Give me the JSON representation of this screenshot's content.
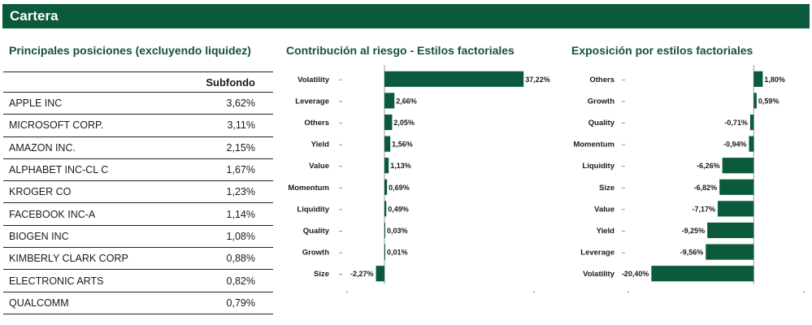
{
  "header": {
    "title": "Cartera"
  },
  "positions": {
    "title": "Principales posiciones (excluyendo liquidez)",
    "column": "Subfondo",
    "rows": [
      {
        "name": "APPLE INC",
        "value": "3,62%"
      },
      {
        "name": "MICROSOFT CORP.",
        "value": "3,11%"
      },
      {
        "name": "AMAZON INC.",
        "value": "2,15%"
      },
      {
        "name": "ALPHABET INC-CL C",
        "value": "1,67%"
      },
      {
        "name": "KROGER CO",
        "value": "1,23%"
      },
      {
        "name": "FACEBOOK INC-A",
        "value": "1,14%"
      },
      {
        "name": "BIOGEN INC",
        "value": "1,08%"
      },
      {
        "name": "KIMBERLY CLARK CORP",
        "value": "0,88%"
      },
      {
        "name": "ELECTRONIC ARTS",
        "value": "0,82%"
      },
      {
        "name": "QUALCOMM",
        "value": "0,79%"
      }
    ]
  },
  "chart_data": [
    {
      "type": "bar",
      "orientation": "horizontal",
      "title": "Contribución al riesgo - Estilos factoriales",
      "categories": [
        "Volatility",
        "Leverage",
        "Others",
        "Yield",
        "Value",
        "Momentum",
        "Liquidity",
        "Quality",
        "Growth",
        "Size"
      ],
      "values": [
        37.22,
        2.66,
        2.05,
        1.56,
        1.13,
        0.69,
        0.49,
        0.03,
        0.01,
        -2.27
      ],
      "labels": [
        "37,22%",
        "2,66%",
        "2,05%",
        "1,56%",
        "1,13%",
        "0,69%",
        "0,49%",
        "0,03%",
        "0,01%",
        "-2,27%"
      ],
      "xlim": [
        -10,
        40
      ],
      "bar_color": "#0b5a3c"
    },
    {
      "type": "bar",
      "orientation": "horizontal",
      "title": "Exposición por estilos factoriales",
      "categories": [
        "Others",
        "Growth",
        "Quality",
        "Momentum",
        "Liquidity",
        "Size",
        "Value",
        "Yield",
        "Leverage",
        "Volatility"
      ],
      "values": [
        1.8,
        0.59,
        -0.71,
        -0.94,
        -6.26,
        -6.82,
        -7.17,
        -9.25,
        -9.56,
        -20.4
      ],
      "labels": [
        "1,80%",
        "0,59%",
        "-0,71%",
        "-0,94%",
        "-6,26%",
        "-6,82%",
        "-7,17%",
        "-9,25%",
        "-9,56%",
        "-20,40%"
      ],
      "xlim": [
        -25,
        10
      ],
      "bar_color": "#0b5a3c"
    }
  ]
}
